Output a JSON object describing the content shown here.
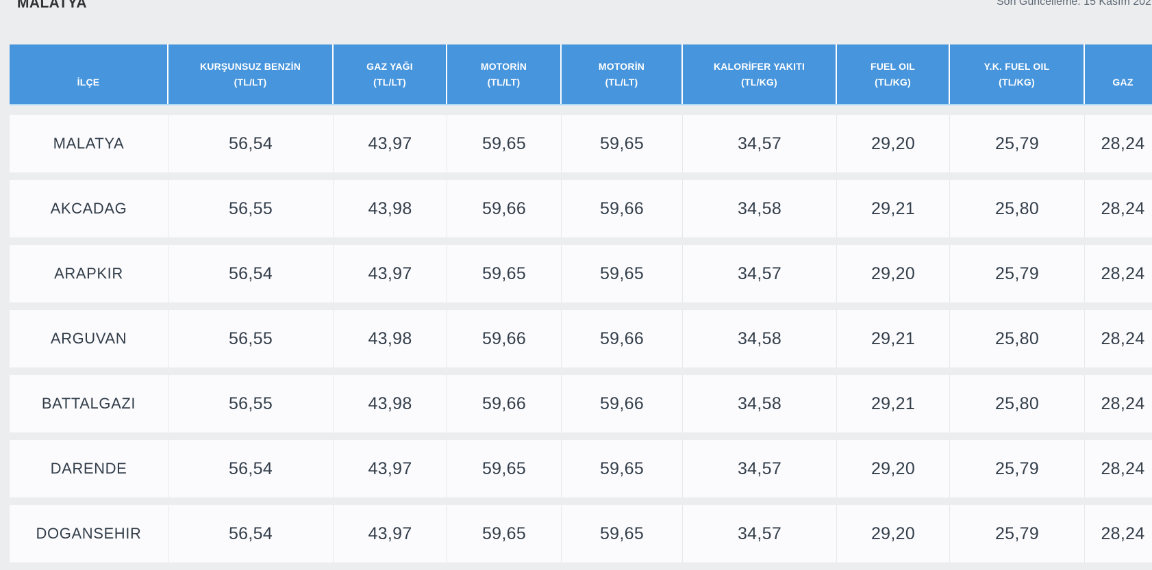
{
  "page": {
    "title": "MALATYA",
    "last_updated": "Son Güncelleme: 15 Kasım 202"
  },
  "colors": {
    "header_bg": "#4795dc",
    "header_underline": "#aedaf3",
    "page_bg": "#ecedee",
    "row_bg": "#fbfbfd",
    "text": "#333e4a"
  },
  "table": {
    "headers": [
      {
        "line1": "",
        "line2": "İLÇE"
      },
      {
        "line1": "KURŞUNSUZ BENZİN",
        "line2": "(TL/LT)"
      },
      {
        "line1": "GAZ YAĞI",
        "line2": "(TL/LT)"
      },
      {
        "line1": "MOTORİN",
        "line2": "(TL/LT)"
      },
      {
        "line1": "MOTORİN",
        "line2": "(TL/LT)"
      },
      {
        "line1": "KALORİFER YAKITI",
        "line2": "(TL/KG)"
      },
      {
        "line1": "FUEL OIL",
        "line2": "(TL/KG)"
      },
      {
        "line1": "Y.K. FUEL OIL",
        "line2": "(TL/KG)"
      },
      {
        "line1": "",
        "line2": "GAZ"
      }
    ],
    "rows": [
      {
        "district": "MALATYA",
        "values": [
          "56,54",
          "43,97",
          "59,65",
          "59,65",
          "34,57",
          "29,20",
          "25,79",
          "28,24"
        ]
      },
      {
        "district": "AKCADAG",
        "values": [
          "56,55",
          "43,98",
          "59,66",
          "59,66",
          "34,58",
          "29,21",
          "25,80",
          "28,24"
        ]
      },
      {
        "district": "ARAPKIR",
        "values": [
          "56,54",
          "43,97",
          "59,65",
          "59,65",
          "34,57",
          "29,20",
          "25,79",
          "28,24"
        ]
      },
      {
        "district": "ARGUVAN",
        "values": [
          "56,55",
          "43,98",
          "59,66",
          "59,66",
          "34,58",
          "29,21",
          "25,80",
          "28,24"
        ]
      },
      {
        "district": "BATTALGAZI",
        "values": [
          "56,55",
          "43,98",
          "59,66",
          "59,66",
          "34,58",
          "29,21",
          "25,80",
          "28,24"
        ]
      },
      {
        "district": "DARENDE",
        "values": [
          "56,54",
          "43,97",
          "59,65",
          "59,65",
          "34,57",
          "29,20",
          "25,79",
          "28,24"
        ]
      },
      {
        "district": "DOGANSEHIR",
        "values": [
          "56,54",
          "43,97",
          "59,65",
          "59,65",
          "34,57",
          "29,20",
          "25,79",
          "28,24"
        ]
      }
    ]
  }
}
